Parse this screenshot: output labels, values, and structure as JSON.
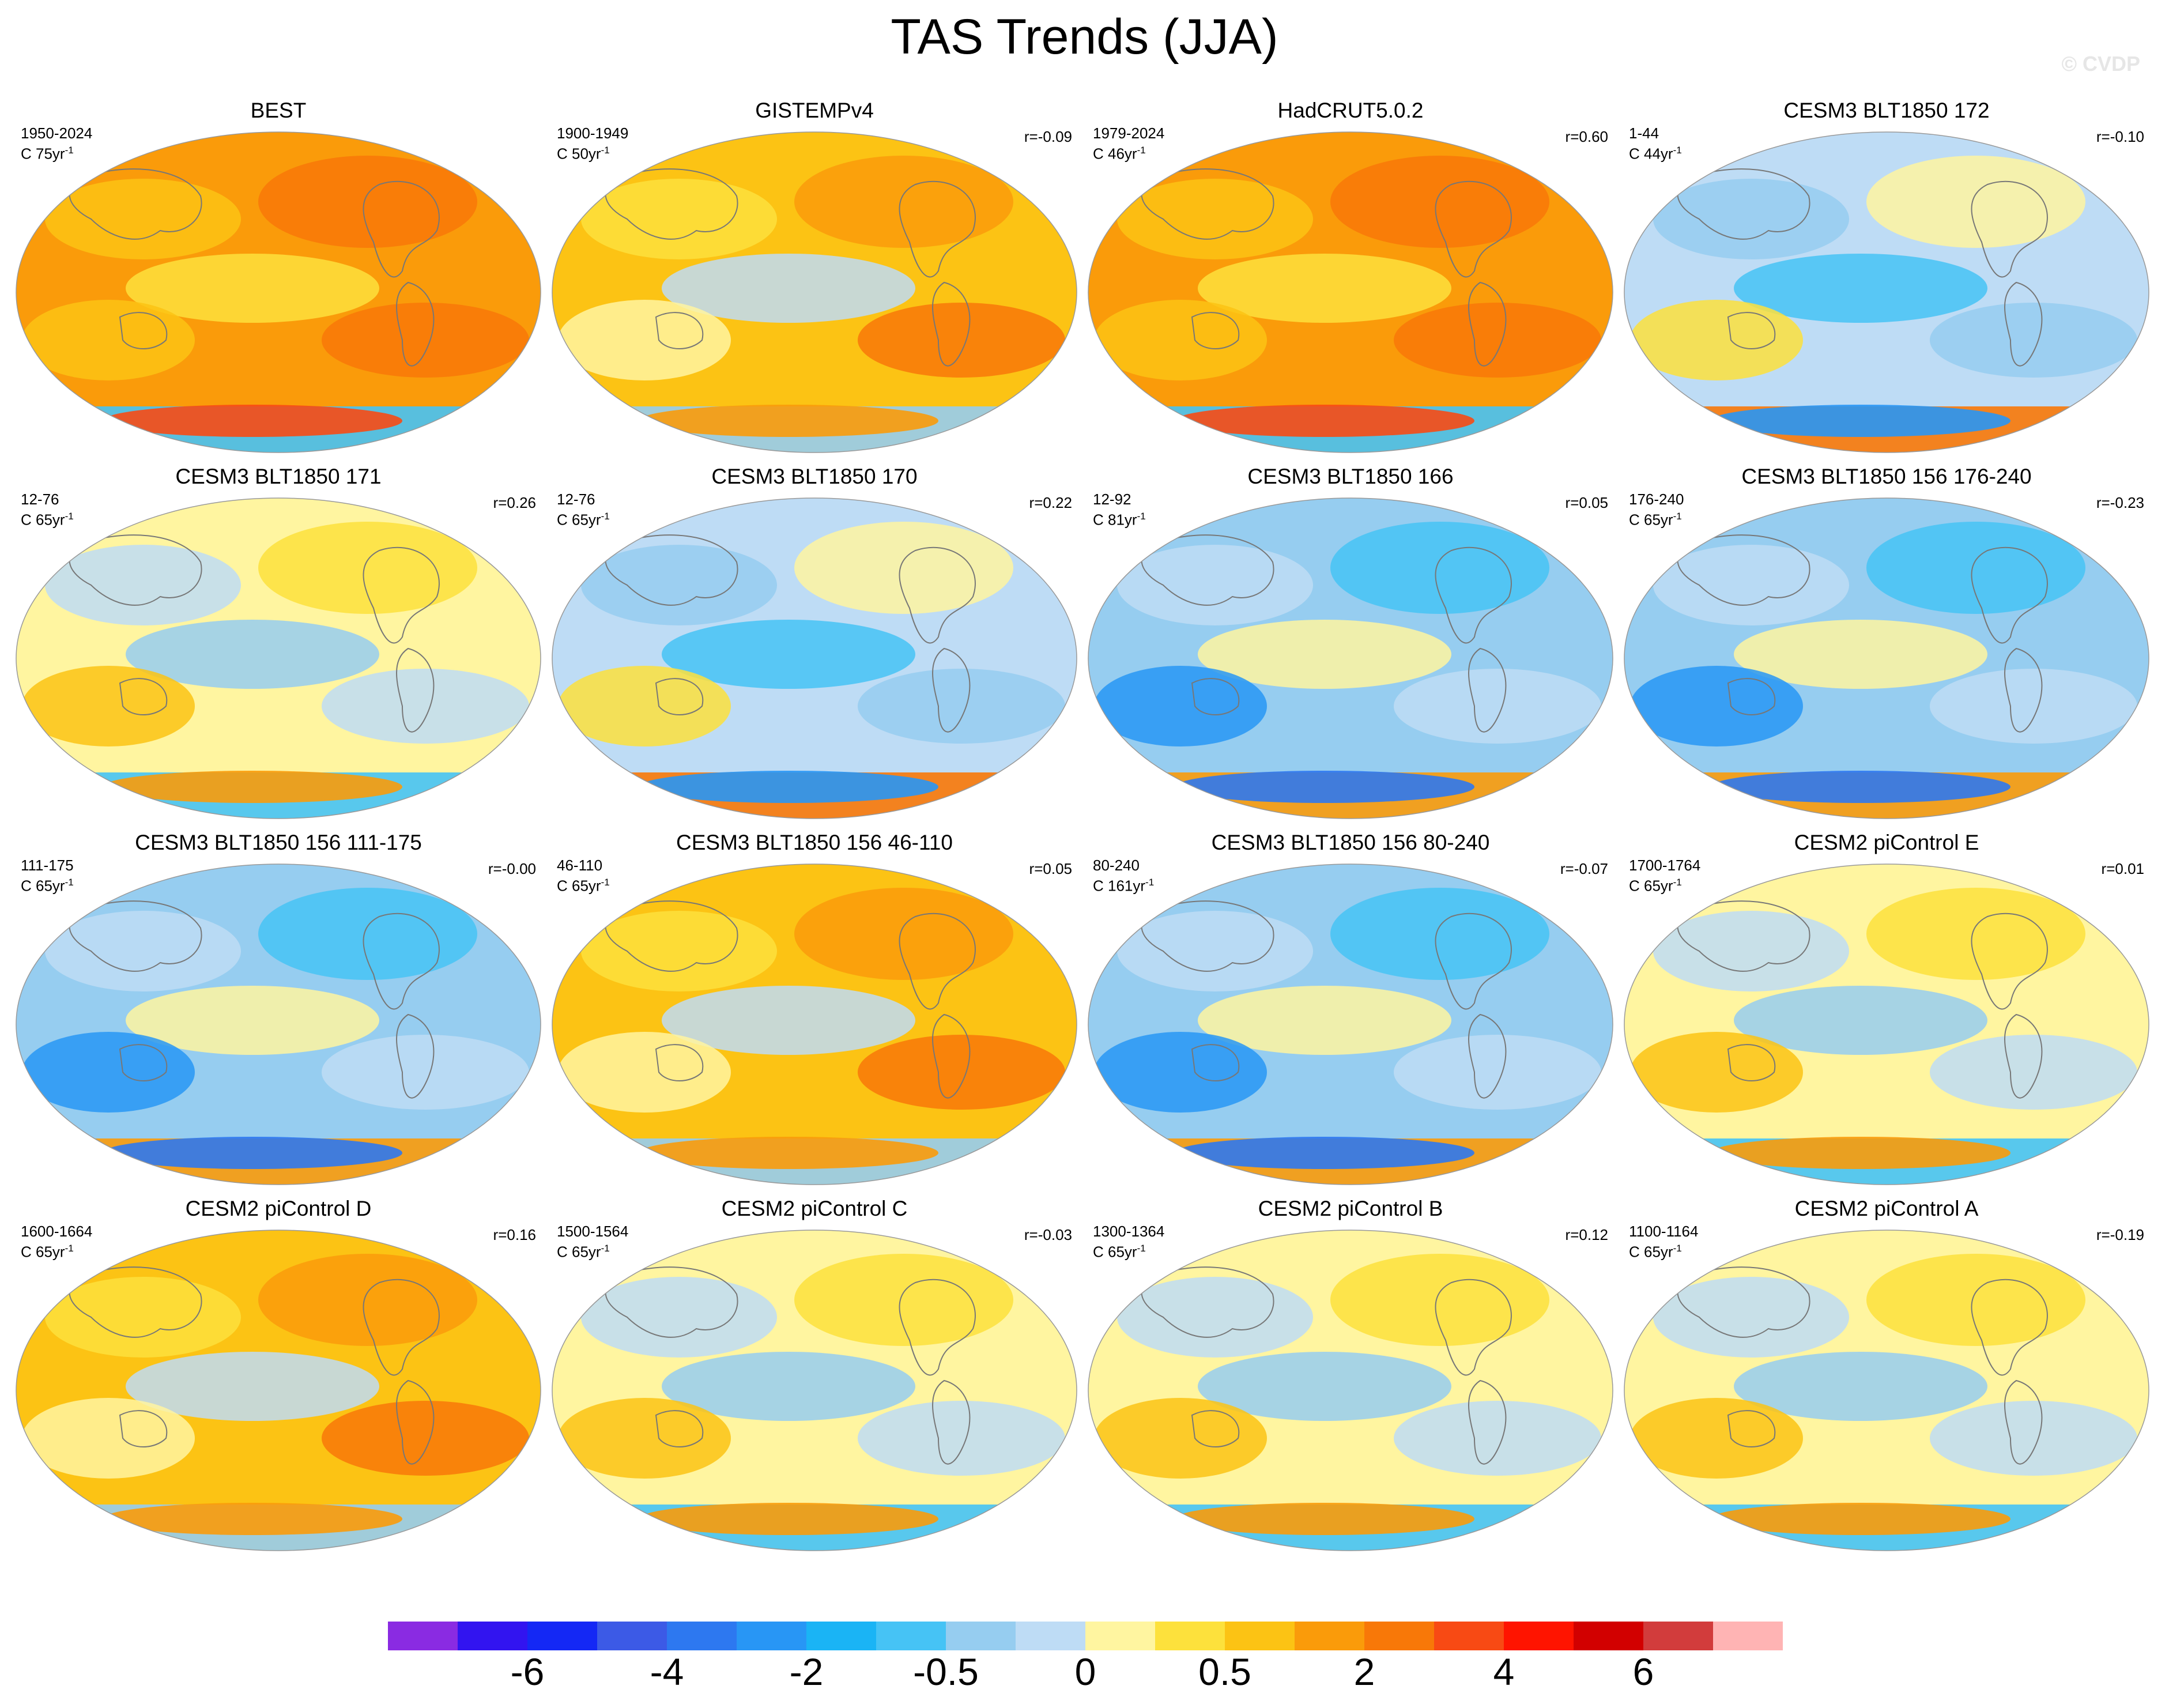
{
  "title": "TAS Trends (JJA)",
  "copyright": "© CVDP",
  "panels": [
    {
      "title": "BEST",
      "years": "1950-2024",
      "trend": "C 75yr",
      "trend_exp": "-1",
      "corr": "",
      "style": "warm"
    },
    {
      "title": "GISTEMPv4",
      "years": "1900-1949",
      "trend": "C 50yr",
      "trend_exp": "-1",
      "corr": "r=-0.09",
      "style": "mixed-warm"
    },
    {
      "title": "HadCRUT5.0.2",
      "years": "1979-2024",
      "trend": "C 46yr",
      "trend_exp": "-1",
      "corr": "r=0.60",
      "style": "warm"
    },
    {
      "title": "CESM3 BLT1850 172",
      "years": "1-44",
      "trend": "C 44yr",
      "trend_exp": "-1",
      "corr": "r=-0.10",
      "style": "mixed-cool"
    },
    {
      "title": "CESM3 BLT1850 171",
      "years": "12-76",
      "trend": "C 65yr",
      "trend_exp": "-1",
      "corr": "r=0.26",
      "style": "mixed"
    },
    {
      "title": "CESM3 BLT1850 170",
      "years": "12-76",
      "trend": "C 65yr",
      "trend_exp": "-1",
      "corr": "r=0.22",
      "style": "mixed-cool"
    },
    {
      "title": "CESM3 BLT1850 166",
      "years": "12-92",
      "trend": "C 81yr",
      "trend_exp": "-1",
      "corr": "r=0.05",
      "style": "cool"
    },
    {
      "title": "CESM3 BLT1850 156 176-240",
      "years": "176-240",
      "trend": "C 65yr",
      "trend_exp": "-1",
      "corr": "r=-0.23",
      "style": "cool"
    },
    {
      "title": "CESM3 BLT1850 156 111-175",
      "years": "111-175",
      "trend": "C 65yr",
      "trend_exp": "-1",
      "corr": "r=-0.00",
      "style": "cool"
    },
    {
      "title": "CESM3 BLT1850 156 46-110",
      "years": "46-110",
      "trend": "C 65yr",
      "trend_exp": "-1",
      "corr": "r=0.05",
      "style": "mixed-warm"
    },
    {
      "title": "CESM3 BLT1850 156 80-240",
      "years": "80-240",
      "trend": "C 161yr",
      "trend_exp": "-1",
      "corr": "r=-0.07",
      "style": "cool"
    },
    {
      "title": "CESM2 piControl E",
      "years": "1700-1764",
      "trend": "C 65yr",
      "trend_exp": "-1",
      "corr": "r=0.01",
      "style": "mixed"
    },
    {
      "title": "CESM2 piControl D",
      "years": "1600-1664",
      "trend": "C 65yr",
      "trend_exp": "-1",
      "corr": "r=0.16",
      "style": "mixed-warm"
    },
    {
      "title": "CESM2 piControl C",
      "years": "1500-1564",
      "trend": "C 65yr",
      "trend_exp": "-1",
      "corr": "r=-0.03",
      "style": "mixed"
    },
    {
      "title": "CESM2 piControl B",
      "years": "1300-1364",
      "trend": "C 65yr",
      "trend_exp": "-1",
      "corr": "r=0.12",
      "style": "mixed"
    },
    {
      "title": "CESM2 piControl A",
      "years": "1100-1164",
      "trend": "C 65yr",
      "trend_exp": "-1",
      "corr": "r=-0.19",
      "style": "mixed"
    }
  ],
  "colorbar": {
    "colors": [
      "#8a2be2",
      "#3214f0",
      "#1428f5",
      "#3c5ae6",
      "#2d78f0",
      "#2896f5",
      "#1ab4f5",
      "#46c3f5",
      "#96cdf0",
      "#bedcf5",
      "#fff5a0",
      "#fde13c",
      "#fcc314",
      "#fa9b0a",
      "#f87808",
      "#f84a14",
      "#ff1400",
      "#d20000",
      "#d23c3c",
      "#ffb4b4"
    ],
    "labels": [
      "-6",
      "-4",
      "-2",
      "-0.5",
      "0",
      "0.5",
      "2",
      "4",
      "6"
    ]
  }
}
